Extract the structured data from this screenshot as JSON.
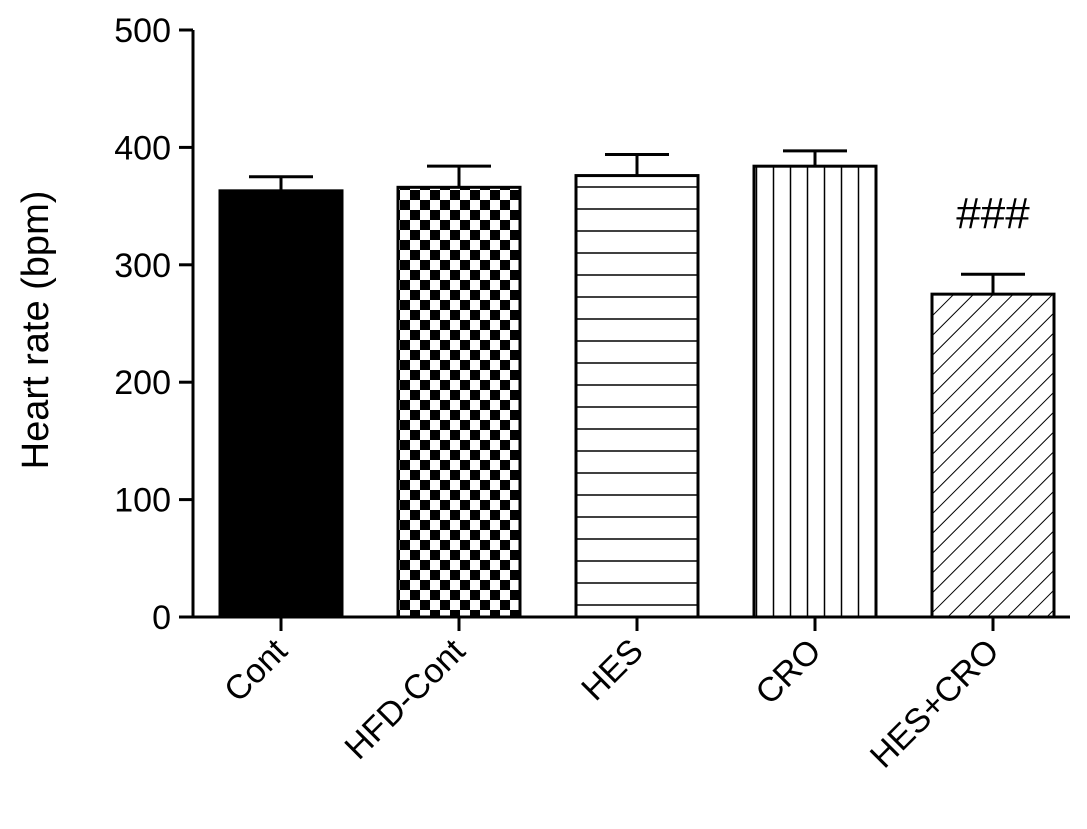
{
  "chart_data": {
    "type": "bar",
    "ylabel": "Heart rate (bpm)",
    "xlabel": "",
    "title": "",
    "ylim": [
      0,
      500
    ],
    "yticks": [
      0,
      100,
      200,
      300,
      400,
      500
    ],
    "grid": false,
    "categories": [
      "Cont",
      "HFD-Cont",
      "HES",
      "CRO",
      "HES+CRO"
    ],
    "values": [
      363,
      366,
      376,
      384,
      275
    ],
    "errors": [
      12,
      18,
      18,
      13,
      17
    ],
    "patterns": [
      "solid",
      "checker",
      "horizontal",
      "vertical",
      "diagonal"
    ],
    "annotations": [
      {
        "category": "HES+CRO",
        "text": "###"
      }
    ]
  }
}
